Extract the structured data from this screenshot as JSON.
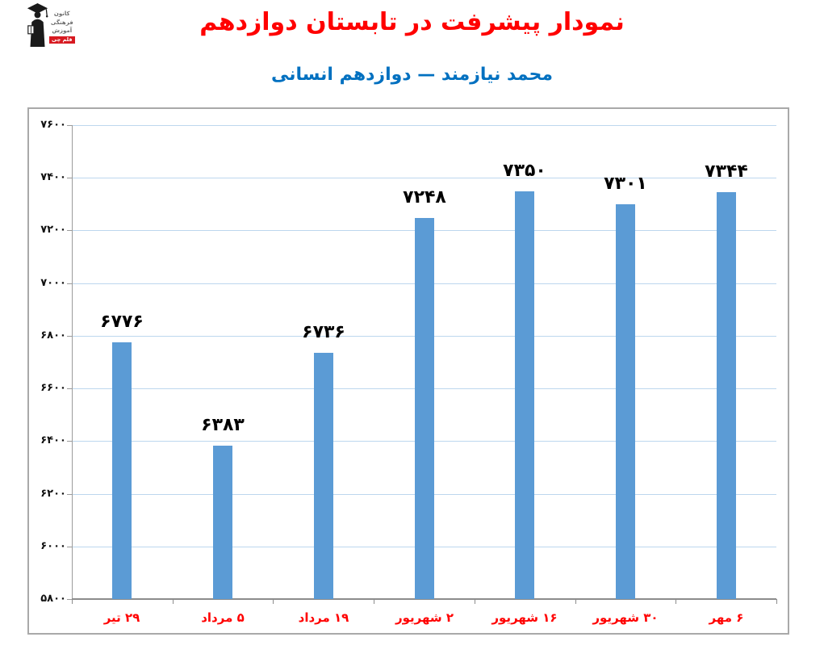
{
  "logo": {
    "org_lines": [
      "کانون",
      "فرهنگی",
      "آموزش"
    ],
    "badge": "قلم چی",
    "badge_color": "#d71a21"
  },
  "header": {
    "title": "نمودار پیشرفت در تابستان دوازدهم",
    "subtitle": "محمد نیازمند — دوازدهم انسانی",
    "title_color": "#ff0000",
    "subtitle_color": "#0070c0"
  },
  "chart_data": {
    "type": "bar",
    "title": "نمودار پیشرفت در تابستان دوازدهم",
    "subtitle": "محمد نیازمند — دوازدهم انسانی",
    "categories": [
      "۲۹ تیر",
      "۵ مرداد",
      "۱۹ مرداد",
      "۲ شهریور",
      "۱۶ شهریور",
      "۳۰ شهریور",
      "۶ مهر"
    ],
    "values": [
      6776,
      6383,
      6736,
      7248,
      7350,
      7301,
      7344
    ],
    "value_labels": [
      "۶۷۷۶",
      "۶۳۸۳",
      "۶۷۳۶",
      "۷۲۴۸",
      "۷۳۵۰",
      "۷۳۰۱",
      "۷۳۴۴"
    ],
    "ylim": [
      5800,
      7600
    ],
    "y_ticks": [
      5800,
      6000,
      6200,
      6400,
      6600,
      6800,
      7000,
      7200,
      7400,
      7600
    ],
    "y_tick_labels": [
      "۵۸۰۰",
      "۶۰۰۰",
      "۶۲۰۰",
      "۶۴۰۰",
      "۶۶۰۰",
      "۶۸۰۰",
      "۷۰۰۰",
      "۷۲۰۰",
      "۷۴۰۰",
      "۷۶۰۰"
    ],
    "grid": true,
    "legend": false,
    "bar_color": "#5b9bd5",
    "grid_color": "#bdd7ee",
    "axis_color": "#9b9b9b",
    "value_label_color": "#000000",
    "category_label_color": "#ff0000",
    "y_tick_label_color": "#111111"
  }
}
